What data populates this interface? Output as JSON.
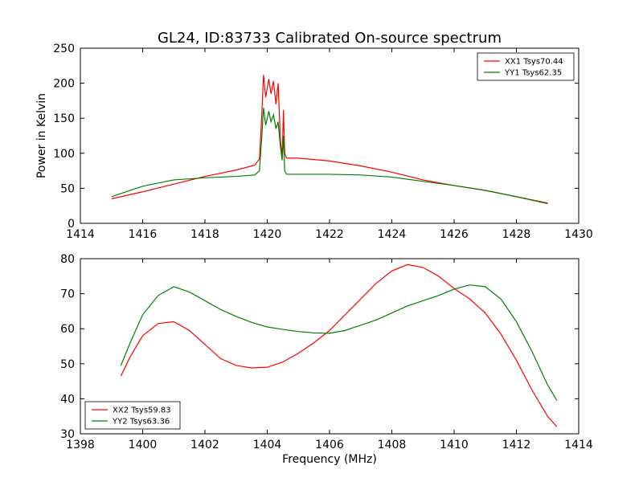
{
  "title": "GL24, ID:83733 Calibrated On-source spectrum",
  "chart_data": [
    {
      "type": "line",
      "xlabel": "",
      "ylabel": "Power in Kelvin",
      "xlim": [
        1414,
        1430
      ],
      "ylim": [
        0,
        250
      ],
      "xticks": [
        1414,
        1416,
        1418,
        1420,
        1422,
        1424,
        1426,
        1428,
        1430
      ],
      "yticks": [
        0,
        50,
        100,
        150,
        200,
        250
      ],
      "legend_position": "top-right",
      "series": [
        {
          "name": "XX1 Tsys70.44",
          "color": "#ff0000",
          "x": [
            1415.0,
            1416.0,
            1417.0,
            1418.0,
            1419.0,
            1419.6,
            1419.75,
            1419.82,
            1419.88,
            1419.95,
            1420.05,
            1420.12,
            1420.2,
            1420.28,
            1420.35,
            1420.42,
            1420.48,
            1420.52,
            1420.56,
            1420.62,
            1420.7,
            1421.0,
            1422.0,
            1423.0,
            1424.0,
            1425.0,
            1426.0,
            1427.0,
            1428.0,
            1429.0
          ],
          "y": [
            35,
            45,
            56,
            67,
            76,
            83,
            92,
            150,
            212,
            180,
            206,
            185,
            203,
            170,
            200,
            120,
            95,
            162,
            100,
            93,
            93,
            93,
            89,
            82,
            73,
            62,
            54,
            47,
            38,
            29
          ]
        },
        {
          "name": "YY1 Tsys62.35",
          "color": "#008000",
          "x": [
            1415.0,
            1416.0,
            1417.0,
            1418.0,
            1419.0,
            1419.6,
            1419.75,
            1419.82,
            1419.88,
            1419.95,
            1420.05,
            1420.12,
            1420.2,
            1420.28,
            1420.35,
            1420.42,
            1420.48,
            1420.52,
            1420.56,
            1420.62,
            1420.7,
            1421.0,
            1422.0,
            1423.0,
            1424.0,
            1425.0,
            1426.0,
            1427.0,
            1428.0,
            1429.0
          ],
          "y": [
            38,
            53,
            62,
            65,
            67,
            69,
            75,
            120,
            165,
            140,
            160,
            145,
            155,
            135,
            145,
            110,
            90,
            125,
            75,
            70,
            70,
            70,
            70,
            69,
            66,
            60,
            54,
            47,
            38,
            28
          ]
        }
      ]
    },
    {
      "type": "line",
      "xlabel": "Frequency (MHz)",
      "ylabel": "",
      "xlim": [
        1398,
        1414
      ],
      "ylim": [
        30,
        80
      ],
      "xticks": [
        1398,
        1400,
        1402,
        1404,
        1406,
        1408,
        1410,
        1412,
        1414
      ],
      "yticks": [
        30,
        40,
        50,
        60,
        70,
        80
      ],
      "legend_position": "bottom-left",
      "series": [
        {
          "name": "XX2 Tsys59.83",
          "color": "#ff0000",
          "x": [
            1399.3,
            1399.6,
            1400.0,
            1400.5,
            1401.0,
            1401.5,
            1402.0,
            1402.5,
            1403.0,
            1403.5,
            1404.0,
            1404.5,
            1405.0,
            1405.5,
            1406.0,
            1406.5,
            1407.0,
            1407.5,
            1408.0,
            1408.5,
            1409.0,
            1409.5,
            1410.0,
            1410.5,
            1411.0,
            1411.5,
            1412.0,
            1412.5,
            1413.0,
            1413.3
          ],
          "y": [
            46.5,
            52,
            58,
            61.5,
            62,
            59.5,
            55.5,
            51.5,
            49.5,
            48.8,
            49,
            50.5,
            53,
            56,
            59.5,
            64,
            68.5,
            73,
            76.5,
            78.3,
            77.5,
            75,
            71.5,
            68.5,
            64.5,
            58.5,
            51,
            42.5,
            35,
            32
          ]
        },
        {
          "name": "YY2 Tsys63.36",
          "color": "#008000",
          "x": [
            1399.3,
            1399.6,
            1400.0,
            1400.5,
            1401.0,
            1401.5,
            1402.0,
            1402.5,
            1403.0,
            1403.5,
            1404.0,
            1404.5,
            1405.0,
            1405.5,
            1406.0,
            1406.5,
            1407.0,
            1407.5,
            1408.0,
            1408.5,
            1409.0,
            1409.5,
            1410.0,
            1410.5,
            1411.0,
            1411.5,
            1412.0,
            1412.5,
            1413.0,
            1413.3
          ],
          "y": [
            49.5,
            56,
            64,
            69.5,
            72,
            70.5,
            68,
            65.5,
            63.5,
            61.8,
            60.5,
            59.8,
            59.2,
            58.8,
            58.7,
            59.5,
            61,
            62.5,
            64.5,
            66.5,
            68,
            69.5,
            71.3,
            72.5,
            72,
            68.5,
            62,
            53.5,
            44,
            39.5
          ]
        }
      ]
    }
  ]
}
